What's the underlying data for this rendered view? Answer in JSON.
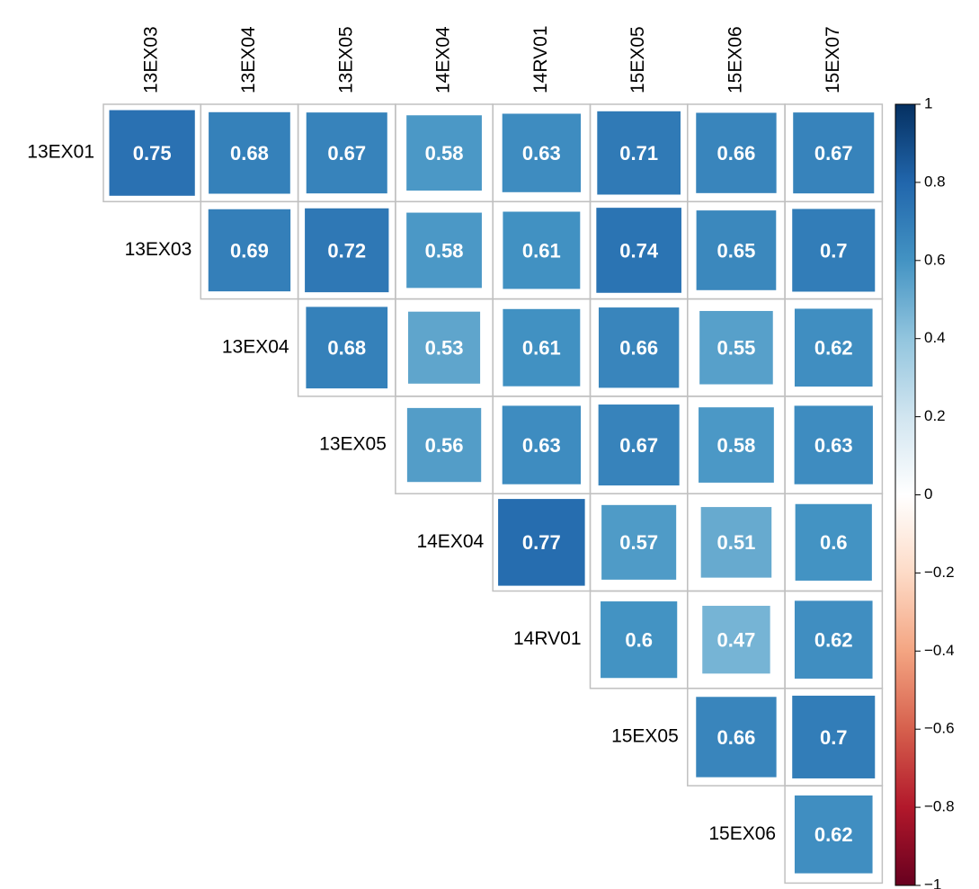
{
  "chart_data": {
    "type": "corrplot",
    "categories": [
      "13EX03",
      "13EX04",
      "13EX05",
      "14EX04",
      "14RV01",
      "15EX05",
      "15EX06",
      "15EX07"
    ],
    "series": [
      {
        "name": "13EX01",
        "values": [
          0.75,
          0.68,
          0.67,
          0.58,
          0.63,
          0.71,
          0.66,
          0.67
        ]
      },
      {
        "name": "13EX03",
        "values": [
          null,
          0.69,
          0.72,
          0.58,
          0.61,
          0.74,
          0.65,
          0.7
        ]
      },
      {
        "name": "13EX04",
        "values": [
          null,
          null,
          0.68,
          0.53,
          0.61,
          0.66,
          0.55,
          0.62
        ]
      },
      {
        "name": "13EX05",
        "values": [
          null,
          null,
          null,
          0.56,
          0.63,
          0.67,
          0.58,
          0.63
        ]
      },
      {
        "name": "14EX04",
        "values": [
          null,
          null,
          null,
          null,
          0.77,
          0.57,
          0.51,
          0.6
        ]
      },
      {
        "name": "14RV01",
        "values": [
          null,
          null,
          null,
          null,
          null,
          0.6,
          0.47,
          0.62
        ]
      },
      {
        "name": "15EX05",
        "values": [
          null,
          null,
          null,
          null,
          null,
          null,
          0.66,
          0.7
        ]
      },
      {
        "name": "15EX06",
        "values": [
          null,
          null,
          null,
          null,
          null,
          null,
          null,
          0.62
        ]
      }
    ],
    "colors": [
      "#67001F",
      "#B2182B",
      "#D6604D",
      "#F4A582",
      "#FDDBC7",
      "#FFFFFF",
      "#D1E5F0",
      "#92C5DE",
      "#4393C3",
      "#2166AC",
      "#053061"
    ],
    "ylim": [
      -1,
      1
    ],
    "yticks": [
      {
        "value": -1,
        "label": "−1"
      },
      {
        "value": -0.8,
        "label": "−0.8"
      },
      {
        "value": -0.6,
        "label": "−0.6"
      },
      {
        "value": -0.4,
        "label": "−0.4"
      },
      {
        "value": -0.2,
        "label": "−0.2"
      },
      0,
      0.2,
      0.4,
      0.6,
      0.8,
      1
    ]
  }
}
